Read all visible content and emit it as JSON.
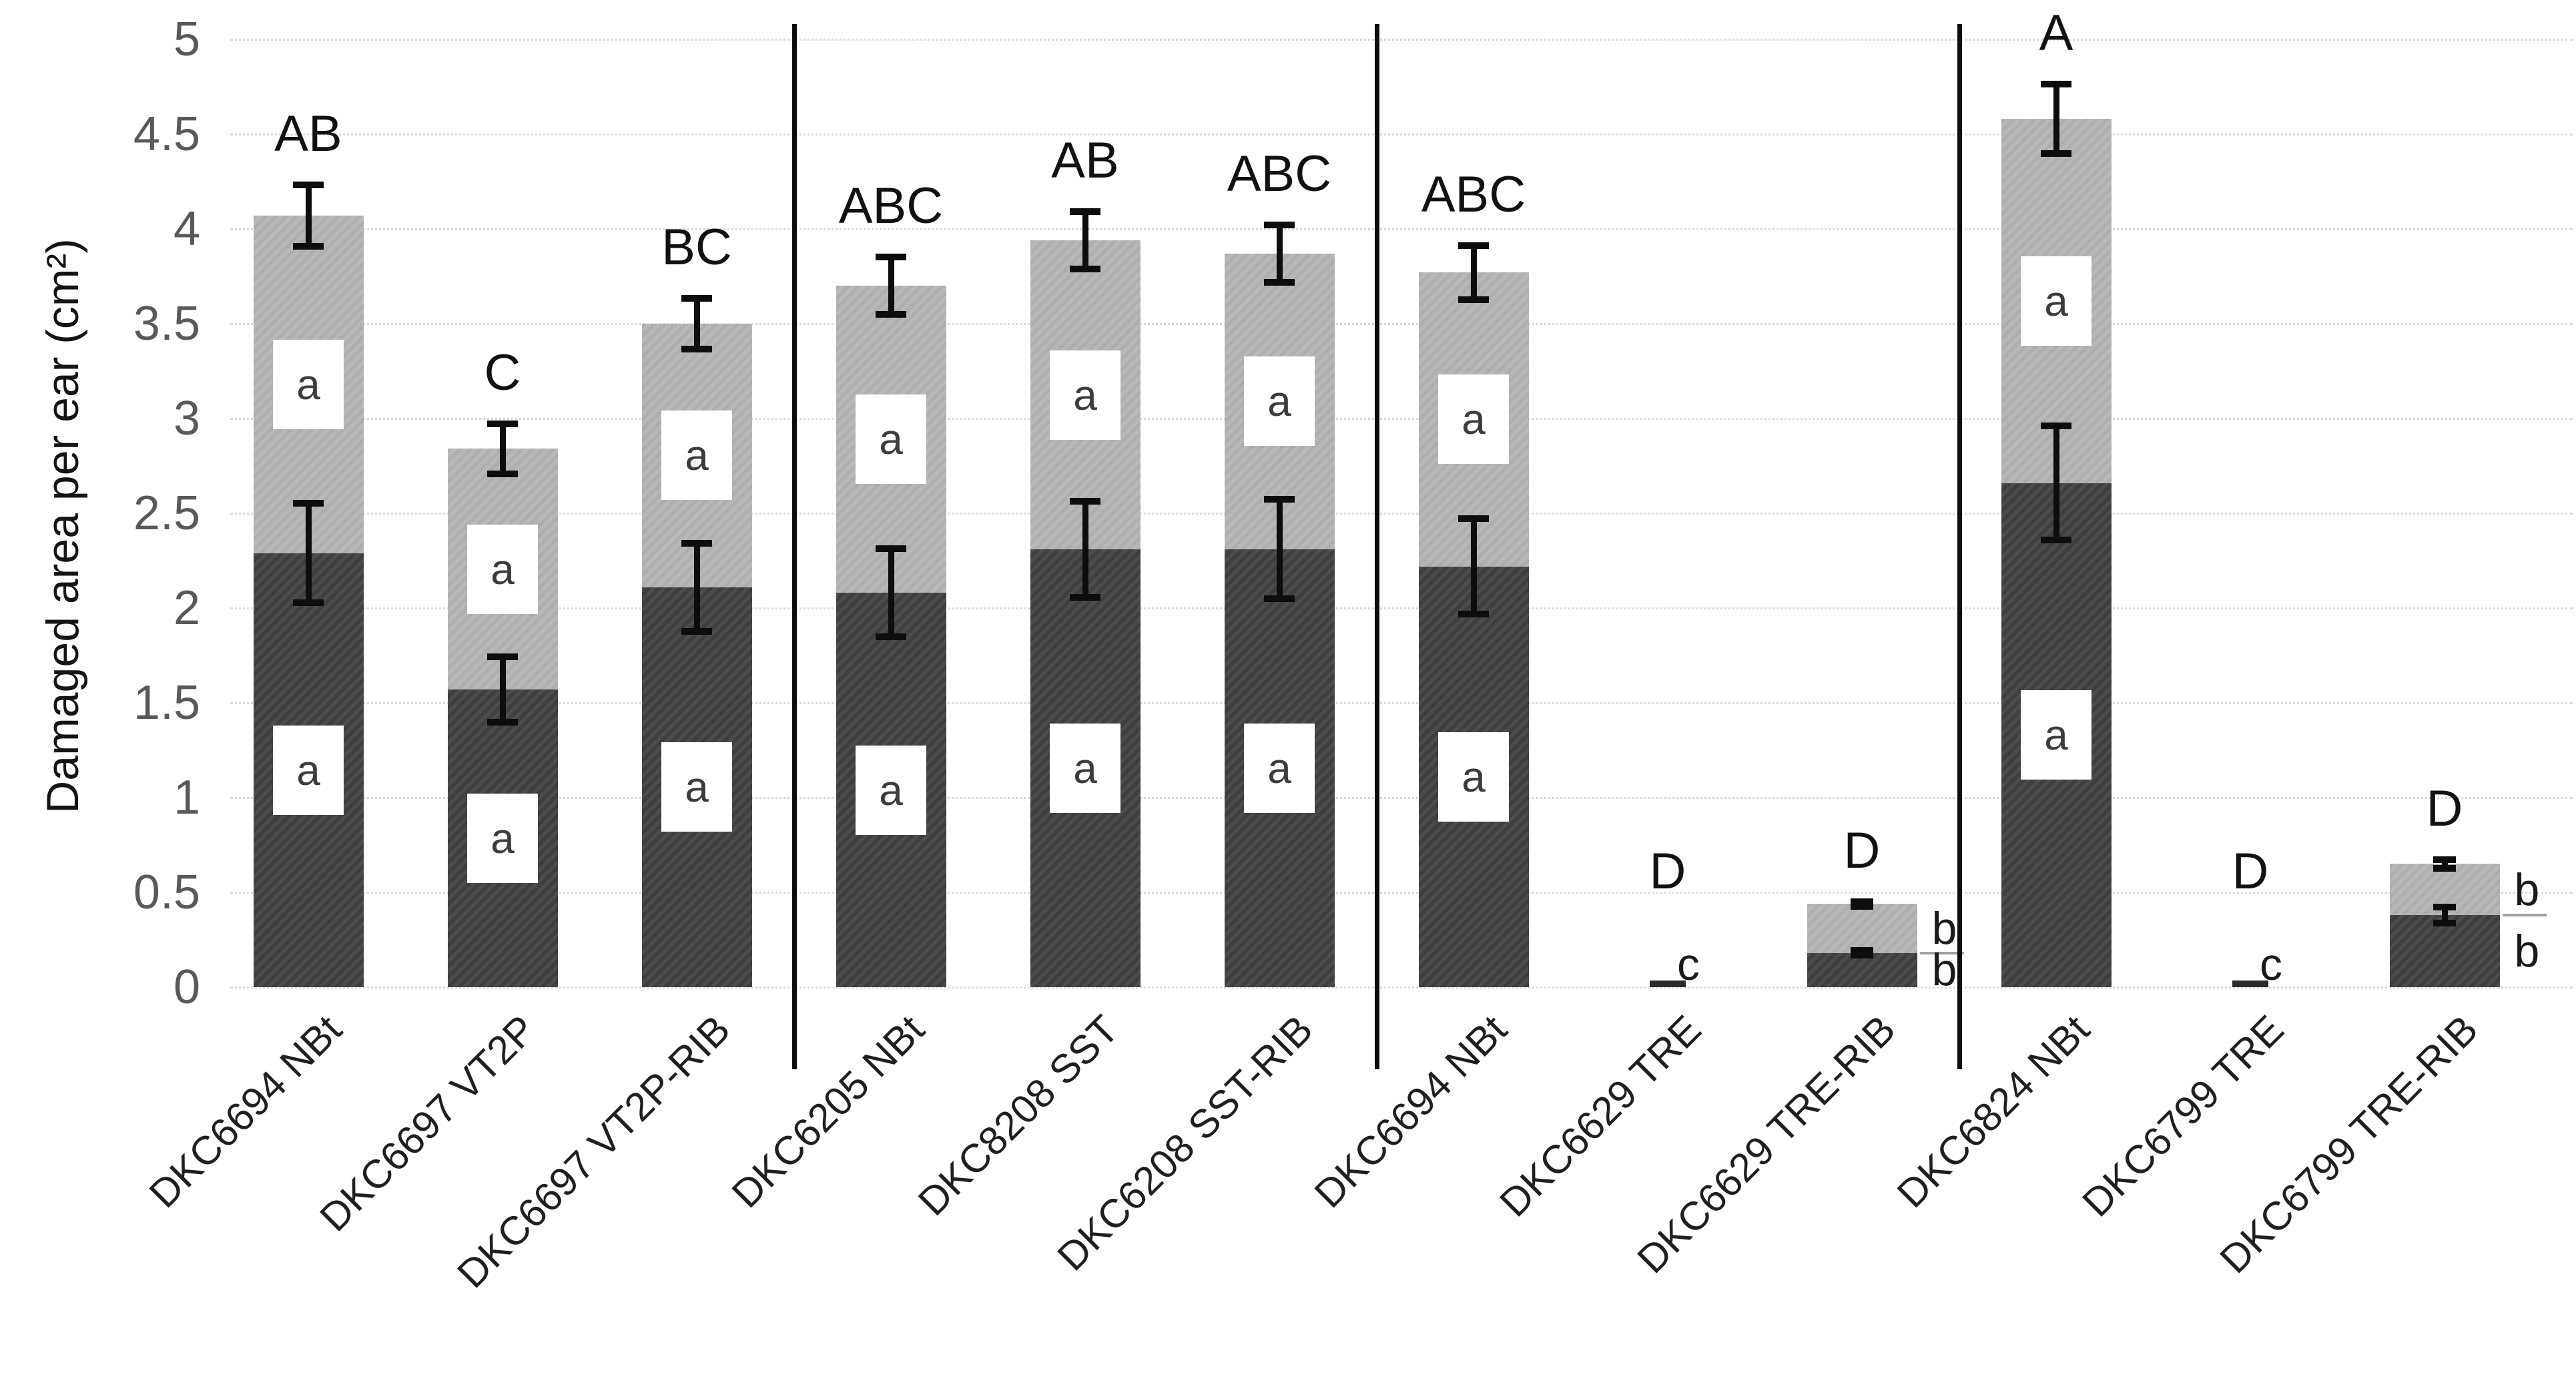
{
  "chart_data": {
    "type": "bar",
    "stacked": true,
    "title": "",
    "xlabel": "",
    "ylabel": "Damaged area per ear (cm²)",
    "ylim": [
      0,
      5
    ],
    "ytick_step": 0.5,
    "yticks": [
      "5",
      "4.5",
      "4",
      "3.5",
      "3",
      "2.5",
      "2",
      "1.5",
      "1",
      "0.5",
      "0"
    ],
    "grid": "horizontal-dotted",
    "legend_position": "none",
    "series_names": [
      "dark bottom segment",
      "light top segment"
    ],
    "colors": {
      "dark_segment": "#3f3f3f",
      "light_segment": "#b7b7b7",
      "error_bar": "#0d0d0d",
      "gridline": "#dadada",
      "divider": "#0d0d0d",
      "tick_label": "#595959",
      "axis_title": "#141414"
    },
    "group_dividers_after": [
      2,
      5,
      8
    ],
    "bars": [
      {
        "label": "DKC6694 NBt",
        "dark": 2.29,
        "dark_err": 0.28,
        "total": 4.07,
        "total_err": 0.18,
        "group_letter": "AB",
        "dark_letter": "a",
        "light_letter": "a"
      },
      {
        "label": "DKC6697 VT2P",
        "dark": 1.57,
        "dark_err": 0.19,
        "total": 2.84,
        "total_err": 0.15,
        "group_letter": "C",
        "dark_letter": "a",
        "light_letter": "a"
      },
      {
        "label": "DKC6697 VT2P-RIB",
        "dark": 2.11,
        "dark_err": 0.25,
        "total": 3.5,
        "total_err": 0.15,
        "group_letter": "BC",
        "dark_letter": "a",
        "light_letter": "a"
      },
      {
        "label": "DKC6205 NBt",
        "dark": 2.08,
        "dark_err": 0.25,
        "total": 3.7,
        "total_err": 0.17,
        "group_letter": "ABC",
        "dark_letter": "a",
        "light_letter": "a"
      },
      {
        "label": "DKC8208 SST",
        "dark": 2.31,
        "dark_err": 0.27,
        "total": 3.94,
        "total_err": 0.17,
        "group_letter": "AB",
        "dark_letter": "a",
        "light_letter": "a"
      },
      {
        "label": "DKC6208 SST-RIB",
        "dark": 2.31,
        "dark_err": 0.28,
        "total": 3.87,
        "total_err": 0.17,
        "group_letter": "ABC",
        "dark_letter": "a",
        "light_letter": "a"
      },
      {
        "label": "DKC6694 NBt",
        "dark": 2.22,
        "dark_err": 0.27,
        "total": 3.77,
        "total_err": 0.16,
        "group_letter": "ABC",
        "dark_letter": "a",
        "light_letter": "a"
      },
      {
        "label": "DKC6629 TRE",
        "dark": 0.02,
        "dark_err": 0.01,
        "total": 0.02,
        "total_err": 0.0,
        "group_letter": "D",
        "dark_letter": "c",
        "light_letter": null
      },
      {
        "label": "DKC6629 TRE-RIB",
        "dark": 0.18,
        "dark_err": 0.03,
        "total": 0.44,
        "total_err": 0.03,
        "group_letter": "D",
        "dark_letter": "b",
        "light_letter": "b"
      },
      {
        "label": "DKC6824 NBt",
        "dark": 2.66,
        "dark_err": 0.32,
        "total": 4.58,
        "total_err": 0.2,
        "group_letter": "A",
        "dark_letter": "a",
        "light_letter": "a"
      },
      {
        "label": "DKC6799 TRE",
        "dark": 0.02,
        "dark_err": 0.01,
        "total": 0.02,
        "total_err": 0.0,
        "group_letter": "D",
        "dark_letter": "c",
        "light_letter": null
      },
      {
        "label": "DKC6799 TRE-RIB",
        "dark": 0.38,
        "dark_err": 0.06,
        "total": 0.65,
        "total_err": 0.04,
        "group_letter": "D",
        "dark_letter": "b",
        "light_letter": "b"
      }
    ]
  }
}
